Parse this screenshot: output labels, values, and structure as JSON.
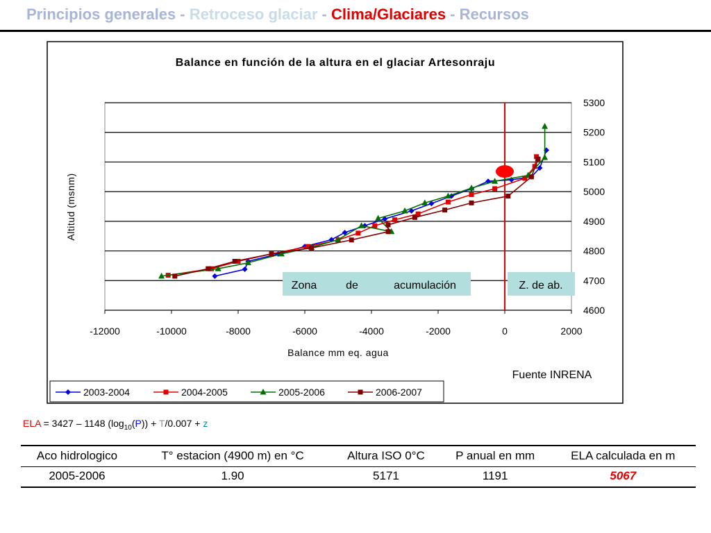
{
  "header": {
    "segments": [
      {
        "text": "Principios generales - ",
        "color": "#a8b4d8"
      },
      {
        "text": "Retroceso glaciar",
        "color": "#c8dce8"
      },
      {
        "text": " - ",
        "color": "#a8b4d8"
      },
      {
        "text": "Clima/Glaciares",
        "color": "#e00000"
      },
      {
        "text": " - Recursos",
        "color": "#a8b4d8"
      }
    ]
  },
  "chart_data": {
    "type": "line",
    "title": "Balance en función de la altura en el glaciar Artesonraju",
    "xlabel": "Balance mm eq. agua",
    "ylabel": "Altitud (msnm)",
    "xlim": [
      -12000,
      2000
    ],
    "ylim": [
      4600,
      5300
    ],
    "x_ticks": [
      -12000,
      -10000,
      -8000,
      -6000,
      -4000,
      -2000,
      0,
      2000
    ],
    "y_ticks": [
      4600,
      4700,
      4800,
      4900,
      5000,
      5100,
      5200,
      5300
    ],
    "y_axis_side": "right",
    "grid": "horizontal",
    "legend_position": "bottom",
    "source_note": "Fuente INRENA",
    "annotations": {
      "accumulation_zone": [
        "Zona",
        "de",
        "acumulación"
      ],
      "ablation_zone": "Z. de ab."
    },
    "ela_line_x": 0,
    "ela_marker": {
      "x": 0,
      "y": 5068
    },
    "series": [
      {
        "name": "2003-2004",
        "color": "#0000e0",
        "marker": "diamond",
        "points": [
          [
            -8700,
            4715
          ],
          [
            -7800,
            4738
          ],
          [
            -7700,
            4765
          ],
          [
            -6800,
            4790
          ],
          [
            -6000,
            4815
          ],
          [
            -5200,
            4838
          ],
          [
            -4800,
            4862
          ],
          [
            -4200,
            4885
          ],
          [
            -3600,
            4908
          ],
          [
            -2800,
            4935
          ],
          [
            -2200,
            4960
          ],
          [
            -1600,
            4985
          ],
          [
            -1000,
            5010
          ],
          [
            -500,
            5035
          ],
          [
            200,
            5040
          ],
          [
            800,
            5050
          ],
          [
            1050,
            5080
          ],
          [
            1250,
            5140
          ]
        ]
      },
      {
        "name": "2004-2005",
        "color": "#e00000",
        "marker": "square",
        "points": [
          [
            -10100,
            4718
          ],
          [
            -8800,
            4740
          ],
          [
            -8000,
            4765
          ],
          [
            -7000,
            4790
          ],
          [
            -5900,
            4815
          ],
          [
            -5000,
            4837
          ],
          [
            -4400,
            4860
          ],
          [
            -3900,
            4885
          ],
          [
            -3300,
            4905
          ],
          [
            -2600,
            4925
          ],
          [
            -1700,
            4965
          ],
          [
            -1000,
            4990
          ],
          [
            -300,
            5010
          ],
          [
            600,
            5045
          ],
          [
            900,
            5085
          ],
          [
            950,
            5118
          ]
        ]
      },
      {
        "name": "2005-2006",
        "color": "#007000",
        "marker": "triangle",
        "points": [
          [
            -10300,
            4715
          ],
          [
            -8600,
            4740
          ],
          [
            -7700,
            4760
          ],
          [
            -6700,
            4790
          ],
          [
            -5800,
            4812
          ],
          [
            -5000,
            4838
          ],
          [
            -4300,
            4885
          ],
          [
            -3400,
            4865
          ],
          [
            -3800,
            4910
          ],
          [
            -3000,
            4935
          ],
          [
            -2400,
            4962
          ],
          [
            -1700,
            4985
          ],
          [
            -1000,
            5012
          ],
          [
            -300,
            5035
          ],
          [
            700,
            5055
          ],
          [
            1200,
            5115
          ],
          [
            1200,
            5220
          ]
        ]
      },
      {
        "name": "2006-2007",
        "color": "#800000",
        "marker": "square",
        "points": [
          [
            -9900,
            4715
          ],
          [
            -8900,
            4740
          ],
          [
            -8100,
            4765
          ],
          [
            -7000,
            4790
          ],
          [
            -5800,
            4810
          ],
          [
            -4600,
            4837
          ],
          [
            -3500,
            4865
          ],
          [
            -3500,
            4888
          ],
          [
            -2700,
            4913
          ],
          [
            -1800,
            4938
          ],
          [
            -1000,
            4962
          ],
          [
            100,
            4985
          ],
          [
            800,
            5050
          ],
          [
            1000,
            5110
          ]
        ]
      }
    ]
  },
  "formula": {
    "parts": [
      {
        "text": "ELA",
        "color": "#e00000"
      },
      {
        "text": " = 3427 – 1148 (log",
        "color": "#000000"
      },
      {
        "text": "10",
        "color": "#000000",
        "sub": true
      },
      {
        "text": "(",
        "color": "#000000"
      },
      {
        "text": "P",
        "color": "#0000e0"
      },
      {
        "text": ")) + ",
        "color": "#000000"
      },
      {
        "text": "T",
        "color": "#9090a0"
      },
      {
        "text": "/0.007 + ",
        "color": "#000000"
      },
      {
        "text": "z",
        "color": "#0090a0"
      }
    ]
  },
  "table": {
    "headers": [
      "Aco hidrologico",
      "T° estacion (4900 m) en °C",
      "Altura ISO 0°C",
      "P anual en mm",
      "ELA calculada en m"
    ],
    "rows": [
      [
        "2005-2006",
        "1.90",
        "5171",
        "1191",
        "5067"
      ]
    ]
  }
}
